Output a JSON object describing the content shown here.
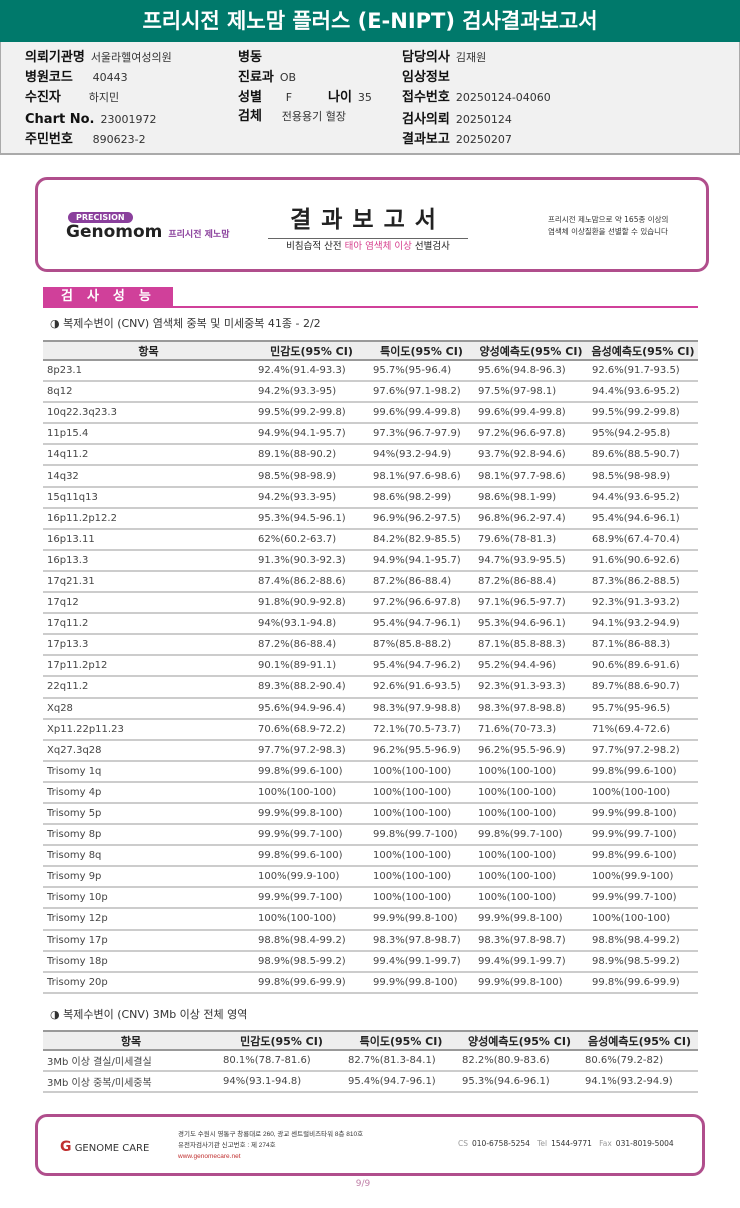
{
  "title": "프리시전 제노맘 플러스 (E-NIPT) 검사결과보고서",
  "info": {
    "institution": {
      "label": "의뢰기관명",
      "value": "서울라헬여성의원"
    },
    "hospital_code": {
      "label": "병원코드",
      "value": "40443"
    },
    "patient": {
      "label": "수진자",
      "value": "하지민"
    },
    "chart_no": {
      "label": "Chart No.",
      "value": "23001972"
    },
    "resident_no": {
      "label": "주민번호",
      "value": "890623-2"
    },
    "ward": {
      "label": "병동",
      "value": ""
    },
    "department": {
      "label": "진료과",
      "value": "OB"
    },
    "sex": {
      "label": "성별",
      "value": "F"
    },
    "age": {
      "label": "나이",
      "value": "35"
    },
    "specimen": {
      "label": "검체",
      "value": "전용용기 혈장"
    },
    "doctor": {
      "label": "담당의사",
      "value": "김재원"
    },
    "clinical": {
      "label": "임상정보",
      "value": ""
    },
    "receipt_no": {
      "label": "접수번호",
      "value": "20250124-04060"
    },
    "request_date": {
      "label": "검사의뢰",
      "value": "20250124"
    },
    "report_date": {
      "label": "결과보고",
      "value": "20250207"
    }
  },
  "banner": {
    "precision": "PRECISION",
    "brand": "Genomom",
    "brand_sub": "프리시전 제노맘",
    "title": "결과보고서",
    "subtitle_pre": "비침습적 산전 ",
    "subtitle_hl": "태아 염색체 이상",
    "subtitle_post": " 선별검사",
    "note1": "프리시전 제노맘으로 약 165종 이상의",
    "note2": "염색체 이상질환을 선별할 수 있습니다"
  },
  "section": "검사성능",
  "table1": {
    "caption": "◑ 복제수변이 (CNV) 염색체 중복 및 미세중복 41종 - 2/2",
    "headers": [
      "항목",
      "민감도(95% CI)",
      "특이도(95% CI)",
      "양성예측도(95% CI)",
      "음성예측도(95% CI)"
    ],
    "rows": [
      [
        "8p23.1",
        "92.4%(91.4-93.3)",
        "95.7%(95-96.4)",
        "95.6%(94.8-96.3)",
        "92.6%(91.7-93.5)"
      ],
      [
        "8q12",
        "94.2%(93.3-95)",
        "97.6%(97.1-98.2)",
        "97.5%(97-98.1)",
        "94.4%(93.6-95.2)"
      ],
      [
        "10q22.3q23.3",
        "99.5%(99.2-99.8)",
        "99.6%(99.4-99.8)",
        "99.6%(99.4-99.8)",
        "99.5%(99.2-99.8)"
      ],
      [
        "11p15.4",
        "94.9%(94.1-95.7)",
        "97.3%(96.7-97.9)",
        "97.2%(96.6-97.8)",
        "95%(94.2-95.8)"
      ],
      [
        "14q11.2",
        "89.1%(88-90.2)",
        "94%(93.2-94.9)",
        "93.7%(92.8-94.6)",
        "89.6%(88.5-90.7)"
      ],
      [
        "14q32",
        "98.5%(98-98.9)",
        "98.1%(97.6-98.6)",
        "98.1%(97.7-98.6)",
        "98.5%(98-98.9)"
      ],
      [
        "15q11q13",
        "94.2%(93.3-95)",
        "98.6%(98.2-99)",
        "98.6%(98.1-99)",
        "94.4%(93.6-95.2)"
      ],
      [
        "16p11.2p12.2",
        "95.3%(94.5-96.1)",
        "96.9%(96.2-97.5)",
        "96.8%(96.2-97.4)",
        "95.4%(94.6-96.1)"
      ],
      [
        "16p13.11",
        "62%(60.2-63.7)",
        "84.2%(82.9-85.5)",
        "79.6%(78-81.3)",
        "68.9%(67.4-70.4)"
      ],
      [
        "16p13.3",
        "91.3%(90.3-92.3)",
        "94.9%(94.1-95.7)",
        "94.7%(93.9-95.5)",
        "91.6%(90.6-92.6)"
      ],
      [
        "17q21.31",
        "87.4%(86.2-88.6)",
        "87.2%(86-88.4)",
        "87.2%(86-88.4)",
        "87.3%(86.2-88.5)"
      ],
      [
        "17q12",
        "91.8%(90.9-92.8)",
        "97.2%(96.6-97.8)",
        "97.1%(96.5-97.7)",
        "92.3%(91.3-93.2)"
      ],
      [
        "17q11.2",
        "94%(93.1-94.8)",
        "95.4%(94.7-96.1)",
        "95.3%(94.6-96.1)",
        "94.1%(93.2-94.9)"
      ],
      [
        "17p13.3",
        "87.2%(86-88.4)",
        "87%(85.8-88.2)",
        "87.1%(85.8-88.3)",
        "87.1%(86-88.3)"
      ],
      [
        "17p11.2p12",
        "90.1%(89-91.1)",
        "95.4%(94.7-96.2)",
        "95.2%(94.4-96)",
        "90.6%(89.6-91.6)"
      ],
      [
        "22q11.2",
        "89.3%(88.2-90.4)",
        "92.6%(91.6-93.5)",
        "92.3%(91.3-93.3)",
        "89.7%(88.6-90.7)"
      ],
      [
        "Xq28",
        "95.6%(94.9-96.4)",
        "98.3%(97.9-98.8)",
        "98.3%(97.8-98.8)",
        "95.7%(95-96.5)"
      ],
      [
        "Xp11.22p11.23",
        "70.6%(68.9-72.2)",
        "72.1%(70.5-73.7)",
        "71.6%(70-73.3)",
        "71%(69.4-72.6)"
      ],
      [
        "Xq27.3q28",
        "97.7%(97.2-98.3)",
        "96.2%(95.5-96.9)",
        "96.2%(95.5-96.9)",
        "97.7%(97.2-98.2)"
      ],
      [
        "Trisomy 1q",
        "99.8%(99.6-100)",
        "100%(100-100)",
        "100%(100-100)",
        "99.8%(99.6-100)"
      ],
      [
        "Trisomy 4p",
        "100%(100-100)",
        "100%(100-100)",
        "100%(100-100)",
        "100%(100-100)"
      ],
      [
        "Trisomy 5p",
        "99.9%(99.8-100)",
        "100%(100-100)",
        "100%(100-100)",
        "99.9%(99.8-100)"
      ],
      [
        "Trisomy 8p",
        "99.9%(99.7-100)",
        "99.8%(99.7-100)",
        "99.8%(99.7-100)",
        "99.9%(99.7-100)"
      ],
      [
        "Trisomy 8q",
        "99.8%(99.6-100)",
        "100%(100-100)",
        "100%(100-100)",
        "99.8%(99.6-100)"
      ],
      [
        "Trisomy 9p",
        "100%(99.9-100)",
        "100%(100-100)",
        "100%(100-100)",
        "100%(99.9-100)"
      ],
      [
        "Trisomy 10p",
        "99.9%(99.7-100)",
        "100%(100-100)",
        "100%(100-100)",
        "99.9%(99.7-100)"
      ],
      [
        "Trisomy 12p",
        "100%(100-100)",
        "99.9%(99.8-100)",
        "99.9%(99.8-100)",
        "100%(100-100)"
      ],
      [
        "Trisomy 17p",
        "98.8%(98.4-99.2)",
        "98.3%(97.8-98.7)",
        "98.3%(97.8-98.7)",
        "98.8%(98.4-99.2)"
      ],
      [
        "Trisomy 18p",
        "98.9%(98.5-99.2)",
        "99.4%(99.1-99.7)",
        "99.4%(99.1-99.7)",
        "98.9%(98.5-99.2)"
      ],
      [
        "Trisomy 20p",
        "99.8%(99.6-99.9)",
        "99.9%(99.8-100)",
        "99.9%(99.8-100)",
        "99.8%(99.6-99.9)"
      ]
    ]
  },
  "table2": {
    "caption": "◑ 복제수변이 (CNV) 3Mb 이상 전체 영역",
    "headers": [
      "항목",
      "민감도(95% CI)",
      "특이도(95% CI)",
      "양성예측도(95% CI)",
      "음성예측도(95% CI)"
    ],
    "rows": [
      [
        "3Mb 이상 결실/미세결실",
        "80.1%(78.7-81.6)",
        "82.7%(81.3-84.1)",
        "82.2%(80.9-83.6)",
        "80.6%(79.2-82)"
      ],
      [
        "3Mb 이상 중복/미세중복",
        "94%(93.1-94.8)",
        "95.4%(94.7-96.1)",
        "95.3%(94.6-96.1)",
        "94.1%(93.2-94.9)"
      ]
    ]
  },
  "footer": {
    "logo": "GENOME CARE",
    "addr1": "경기도 수원시 영통구 창룡대로 260, 광교 센트럴비즈타워 8층 810호",
    "addr2": "유전자검사기관 신고번호 : 제 274호",
    "url": "www.genomecare.net",
    "cs_label": "CS",
    "cs": "010-6758-5254",
    "tel_label": "Tel",
    "tel": "1544-9771",
    "fax_label": "Fax",
    "fax": "031-8019-5004"
  },
  "page": "9/9",
  "colors": {
    "header": "#00796b",
    "accent": "#d0409a",
    "border": "#b04e8c"
  }
}
